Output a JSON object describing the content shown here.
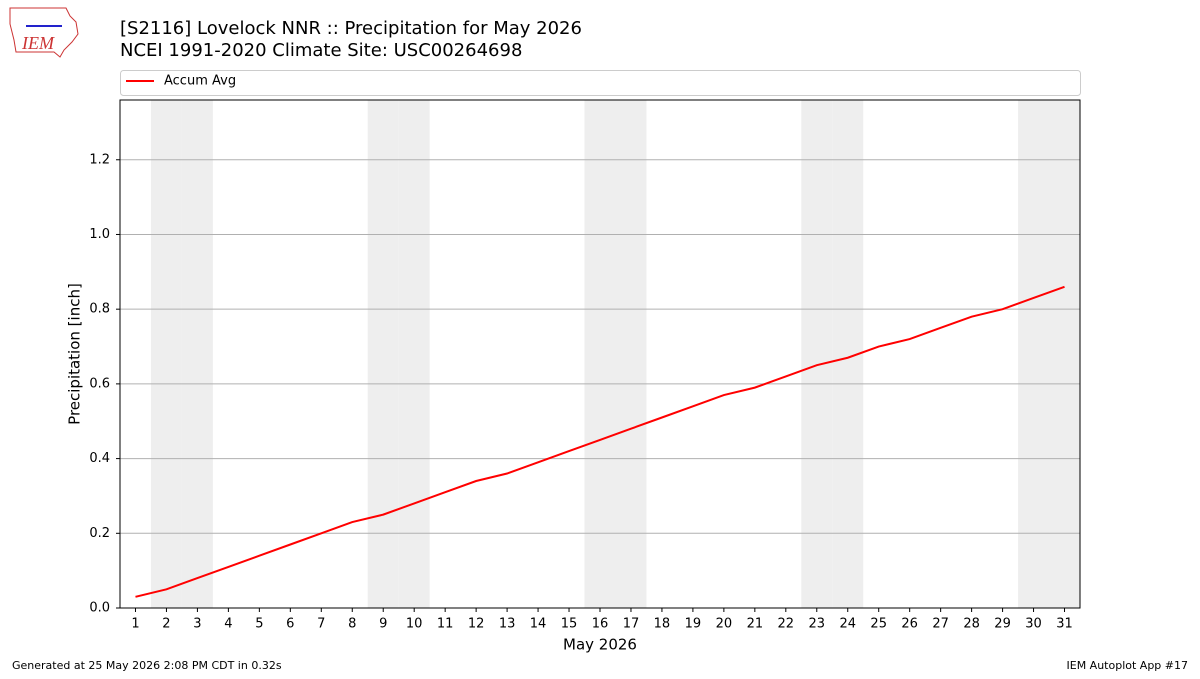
{
  "logo_text": "IEM",
  "footer_left": "Generated at 25 May 2026 2:08 PM CDT in 0.32s",
  "footer_right": "IEM Autoplot App #17",
  "chart_data": {
    "type": "line",
    "title": "[S2116] Lovelock NNR :: Precipitation for May 2026",
    "subtitle": "NCEI 1991-2020 Climate Site: USC00264698",
    "x_label": "May 2026",
    "y_label": "Precipitation [inch]",
    "x": [
      1,
      2,
      3,
      4,
      5,
      6,
      7,
      8,
      9,
      10,
      11,
      12,
      13,
      14,
      15,
      16,
      17,
      18,
      19,
      20,
      21,
      22,
      23,
      24,
      25,
      26,
      27,
      28,
      29,
      30,
      31
    ],
    "series": [
      {
        "name": "Accum Avg",
        "color": "#ff0000",
        "values": [
          0.03,
          0.05,
          0.08,
          0.11,
          0.14,
          0.17,
          0.2,
          0.23,
          0.25,
          0.28,
          0.31,
          0.34,
          0.36,
          0.39,
          0.42,
          0.45,
          0.48,
          0.51,
          0.54,
          0.57,
          0.59,
          0.62,
          0.65,
          0.67,
          0.7,
          0.72,
          0.75,
          0.78,
          0.8,
          0.83,
          0.86
        ]
      }
    ],
    "shaded_days": [
      2,
      3,
      9,
      10,
      16,
      17,
      23,
      24,
      30,
      31
    ],
    "shade_color": "#eeeeee",
    "xlim": [
      0.5,
      31.5
    ],
    "ylim": [
      0,
      1.36
    ],
    "xticks": [
      1,
      2,
      3,
      4,
      5,
      6,
      7,
      8,
      9,
      10,
      11,
      12,
      13,
      14,
      15,
      16,
      17,
      18,
      19,
      20,
      21,
      22,
      23,
      24,
      25,
      26,
      27,
      28,
      29,
      30,
      31
    ],
    "yticks": [
      {
        "value": 0,
        "label": "0.0"
      },
      0.2,
      0.4,
      0.6,
      0.8,
      {
        "value": 1,
        "label": "1.0"
      },
      1.2
    ],
    "grid": "y",
    "legend": "top"
  }
}
